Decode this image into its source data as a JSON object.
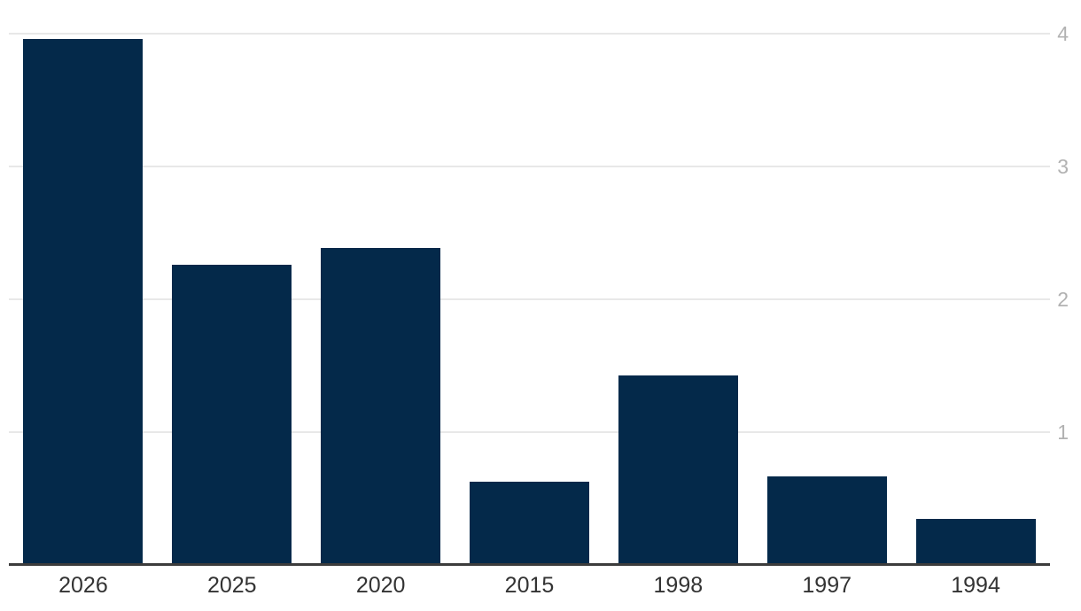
{
  "chart_data": {
    "type": "bar",
    "categories": [
      "2026",
      "2025",
      "2020",
      "2015",
      "1998",
      "1997",
      "1994"
    ],
    "values": [
      3.96,
      2.26,
      2.39,
      0.63,
      1.43,
      0.67,
      0.35
    ],
    "title": "",
    "xlabel": "",
    "ylabel": "",
    "ylim": [
      0,
      4
    ],
    "yticks": [
      1,
      2,
      3,
      4
    ],
    "grid": true,
    "legend_position": "none",
    "colors": {
      "bar_fill": "#04294a",
      "gridline": "#e8e8e8",
      "axis_line": "#3c3c3c",
      "y_tick_label": "#b2b2b2",
      "x_tick_label": "#333333",
      "background": "#ffffff"
    }
  }
}
